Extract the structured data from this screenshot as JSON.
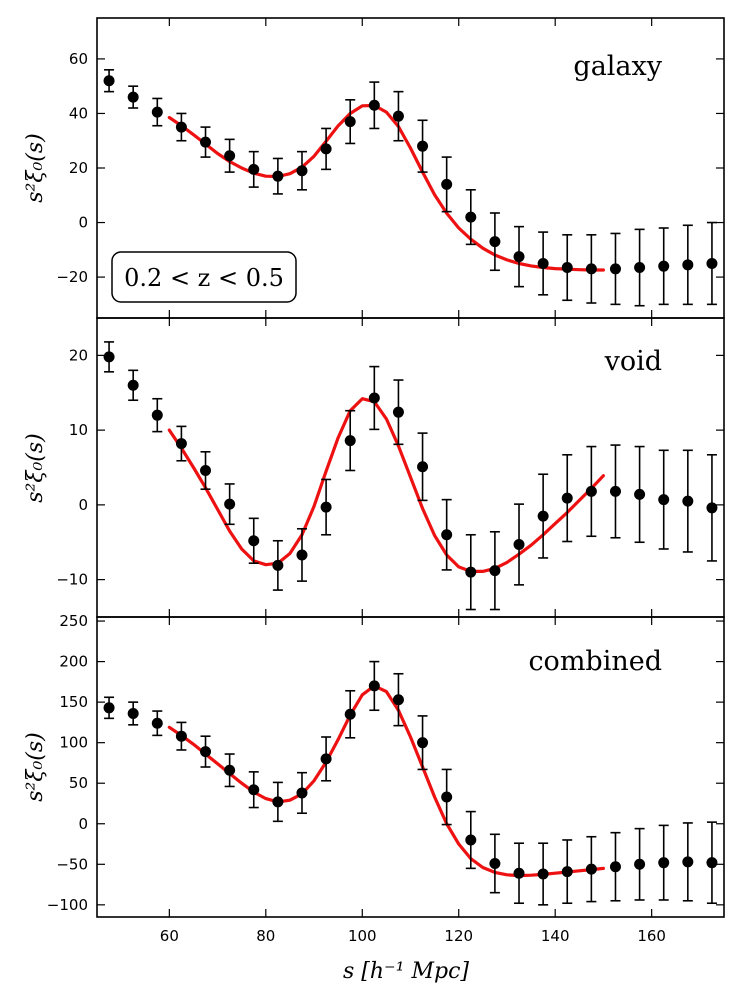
{
  "chart_data": [
    {
      "type": "scatter",
      "panel": "top",
      "label": "galaxy",
      "ylabel": "s²ξ₀(s)",
      "xlim": [
        45,
        175
      ],
      "ylim": [
        -35,
        75
      ],
      "yticks": [
        -20,
        0,
        20,
        40,
        60
      ],
      "annotation": "0.2 < z < 0.5",
      "series": [
        {
          "name": "measurement",
          "x": [
            47.5,
            52.5,
            57.5,
            62.5,
            67.5,
            72.5,
            77.5,
            82.5,
            87.5,
            92.5,
            97.5,
            102.5,
            107.5,
            112.5,
            117.5,
            122.5,
            127.5,
            132.5,
            137.5,
            142.5,
            147.5,
            152.5,
            157.5,
            162.5,
            167.5,
            172.5
          ],
          "y": [
            52,
            46,
            40.5,
            35,
            29.5,
            24.5,
            19.5,
            17,
            19,
            27,
            37,
            43,
            39,
            28,
            14,
            2,
            -7,
            -12.5,
            -15,
            -16.5,
            -17,
            -17,
            -16.5,
            -16,
            -15.5,
            -15
          ],
          "err": [
            4,
            4,
            5,
            5,
            5.5,
            6,
            6.5,
            6.5,
            7,
            7.5,
            8,
            8.5,
            9,
            9.5,
            10,
            10,
            10.5,
            11,
            11.5,
            12,
            12.5,
            13,
            14,
            14,
            14.5,
            15
          ]
        },
        {
          "name": "model",
          "x": [
            60,
            62.5,
            65,
            67.5,
            70,
            72.5,
            75,
            77.5,
            80,
            82.5,
            85,
            87.5,
            90,
            92.5,
            95,
            97.5,
            100,
            102.5,
            105,
            107.5,
            110,
            112.5,
            115,
            117.5,
            120,
            122.5,
            125,
            127.5,
            130,
            132.5,
            135,
            137.5,
            140,
            142.5,
            145,
            147.5,
            150
          ],
          "y": [
            38.5,
            35.5,
            32.2,
            28.8,
            25.3,
            22.4,
            20.0,
            18.1,
            17.0,
            16.9,
            17.9,
            20.3,
            24.3,
            29.8,
            35.5,
            40.0,
            42.8,
            42.9,
            40.5,
            35.2,
            27.3,
            18.5,
            10.2,
            3.4,
            -2.0,
            -6.1,
            -9.4,
            -11.9,
            -13.7,
            -15.0,
            -15.9,
            -16.5,
            -16.9,
            -17.1,
            -17.3,
            -17.4,
            -17.4
          ]
        }
      ]
    },
    {
      "type": "scatter",
      "panel": "middle",
      "label": "void",
      "ylabel": "s²ξ₀(s)",
      "xlim": [
        45,
        175
      ],
      "ylim": [
        -15,
        25
      ],
      "yticks": [
        -10,
        0,
        10,
        20
      ],
      "series": [
        {
          "name": "measurement",
          "x": [
            47.5,
            52.5,
            57.5,
            62.5,
            67.5,
            72.5,
            77.5,
            82.5,
            87.5,
            92.5,
            97.5,
            102.5,
            107.5,
            112.5,
            117.5,
            122.5,
            127.5,
            132.5,
            137.5,
            142.5,
            147.5,
            152.5,
            157.5,
            162.5,
            167.5,
            172.5
          ],
          "y": [
            19.8,
            16,
            12,
            8.2,
            4.6,
            0.1,
            -4.8,
            -8.1,
            -6.7,
            -0.3,
            8.6,
            14.3,
            12.4,
            5.1,
            -4,
            -9,
            -8.8,
            -5.3,
            -1.5,
            0.9,
            1.8,
            1.8,
            1.4,
            0.7,
            0.5,
            -0.4
          ]
        },
        {
          "name": "model",
          "x": [
            60,
            62.5,
            65,
            67.5,
            70,
            72.5,
            75,
            77.5,
            80,
            82.5,
            85,
            87.5,
            90,
            92.5,
            95,
            97.5,
            100,
            102.5,
            105,
            107.5,
            110,
            112.5,
            115,
            117.5,
            120,
            122.5,
            125,
            127.5,
            130,
            132.5,
            135,
            137.5,
            140,
            142.5,
            145,
            147.5,
            150
          ],
          "y": [
            10.0,
            7.6,
            5.0,
            2.3,
            -0.6,
            -3.5,
            -5.9,
            -7.5,
            -8.0,
            -7.8,
            -6.5,
            -4.0,
            -0.2,
            4.5,
            9.0,
            12.6,
            14.2,
            13.8,
            11.5,
            7.9,
            3.7,
            -0.5,
            -4.1,
            -6.7,
            -8.3,
            -8.9,
            -8.9,
            -8.5,
            -7.7,
            -6.6,
            -5.4,
            -4.0,
            -2.5,
            -1.0,
            0.6,
            2.2,
            3.9
          ]
        }
      ]
    },
    {
      "type": "scatter",
      "panel": "bottom",
      "label": "combined",
      "ylabel": "s²ξ₀(s)",
      "xlabel": "s [h⁻¹ Mpc]",
      "xlim": [
        45,
        175
      ],
      "ylim": [
        -115,
        255
      ],
      "yticks": [
        -100,
        -50,
        0,
        50,
        100,
        150,
        200,
        250
      ],
      "xticks": [
        60,
        80,
        100,
        120,
        140,
        160
      ],
      "series": [
        {
          "name": "measurement",
          "x": [
            47.5,
            52.5,
            57.5,
            62.5,
            67.5,
            72.5,
            77.5,
            82.5,
            87.5,
            92.5,
            97.5,
            102.5,
            107.5,
            112.5,
            117.5,
            122.5,
            127.5,
            132.5,
            137.5,
            142.5,
            147.5,
            152.5,
            157.5,
            162.5,
            167.5,
            172.5
          ],
          "y": [
            143,
            136,
            124,
            108,
            89,
            66,
            42,
            27,
            38,
            80,
            135,
            170,
            153,
            100,
            33,
            -20,
            -49,
            -61,
            -62,
            -59,
            -56,
            -53,
            -50,
            -48,
            -47,
            -48
          ],
          "err": [
            13,
            14,
            15,
            17,
            19,
            20,
            22,
            24,
            25,
            27,
            29,
            30,
            32,
            33,
            34,
            35,
            36,
            37,
            38,
            39,
            40,
            42,
            44,
            46,
            48,
            50
          ]
        },
        {
          "name": "model",
          "x": [
            60,
            62.5,
            65,
            67.5,
            70,
            72.5,
            75,
            77.5,
            80,
            82.5,
            85,
            87.5,
            90,
            92.5,
            95,
            97.5,
            100,
            102.5,
            105,
            107.5,
            110,
            112.5,
            115,
            117.5,
            120,
            122.5,
            125,
            127.5,
            130,
            132.5,
            135,
            137.5,
            140,
            142.5,
            145,
            147.5,
            150
          ],
          "y": [
            119,
            109,
            98,
            86,
            74,
            62,
            50,
            39,
            31,
            27,
            29,
            37,
            53,
            76,
            104,
            134,
            159,
            170,
            163,
            140,
            107,
            70,
            33,
            0,
            -25,
            -43,
            -54,
            -60,
            -63,
            -64,
            -63.5,
            -62.5,
            -61,
            -59.5,
            -58,
            -56.5,
            -55
          ]
        }
      ]
    }
  ],
  "void_errors": [
    2,
    2,
    2.2,
    2.3,
    2.5,
    2.7,
    3,
    3.3,
    3.5,
    3.7,
    4,
    4.2,
    4.3,
    4.5,
    4.7,
    5,
    5.2,
    5.4,
    5.6,
    5.8,
    6,
    6.2,
    6.4,
    6.6,
    6.8,
    7.1
  ]
}
